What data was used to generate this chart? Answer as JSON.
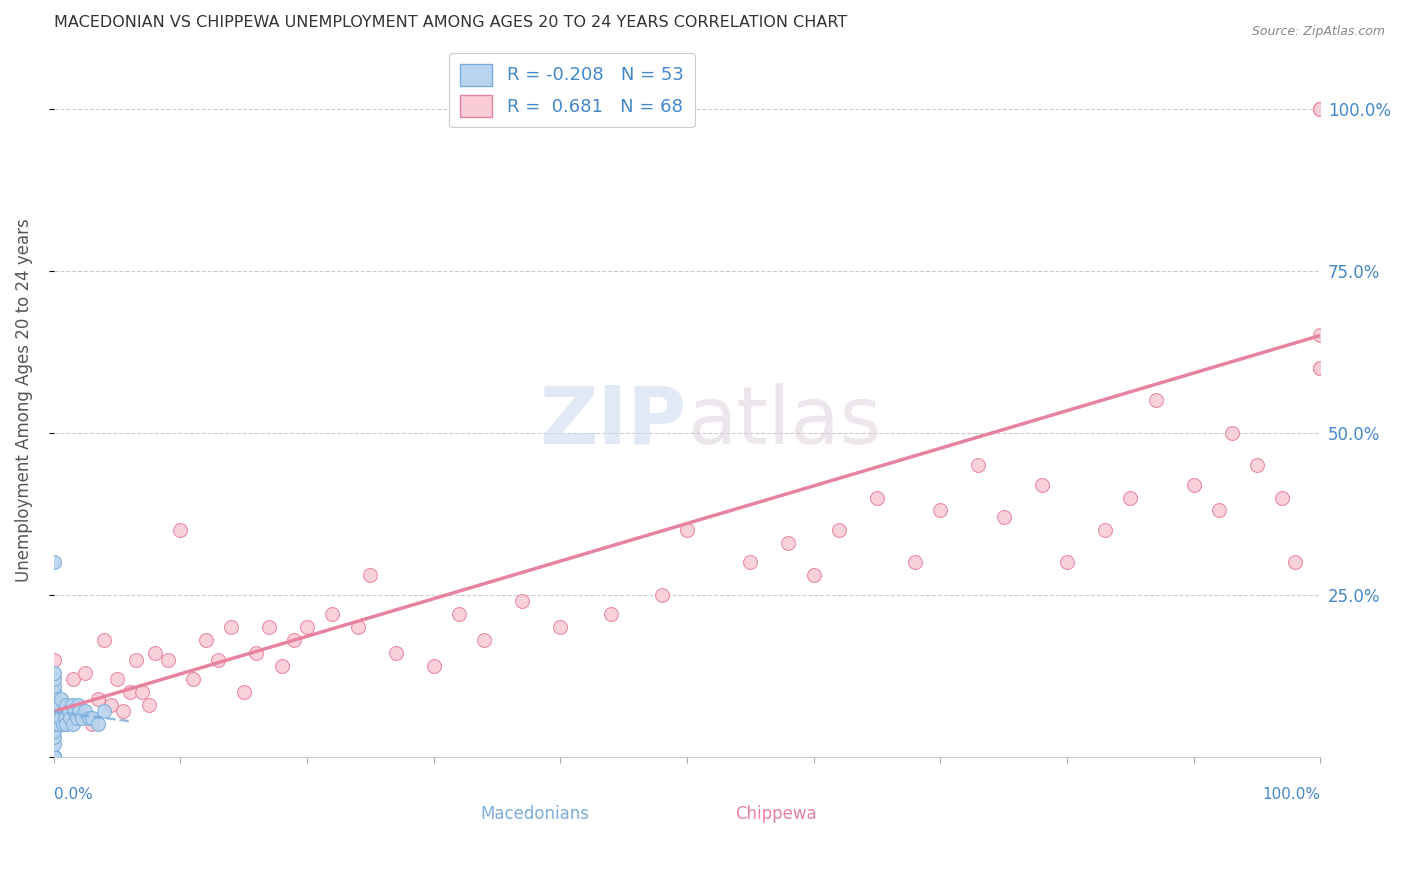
{
  "title": "MACEDONIAN VS CHIPPEWA UNEMPLOYMENT AMONG AGES 20 TO 24 YEARS CORRELATION CHART",
  "source": "Source: ZipAtlas.com",
  "ylabel": "Unemployment Among Ages 20 to 24 years",
  "ylabel_right_ticks": [
    "100.0%",
    "75.0%",
    "50.0%",
    "25.0%"
  ],
  "ylabel_right_vals": [
    1.0,
    0.75,
    0.5,
    0.25
  ],
  "macedonian_color": "#b8d4ee",
  "macedonian_edge": "#7aaddd",
  "chippewa_color": "#f9ccd8",
  "chippewa_edge": "#e8839f",
  "regression_chippewa_color": "#e8839f",
  "regression_macedonian_color": "#7aaddd",
  "background_color": "#ffffff",
  "grid_color": "#cccccc",
  "title_color": "#333333",
  "axis_label_color": "#555555",
  "right_tick_color": "#4488cc",
  "bottom_tick_color": "#4488cc",
  "legend_label_color": "#4488cc",
  "watermark": "ZIPatlas",
  "watermark_color": "#ccddf0",
  "macedonians_scatter_x": [
    0.0,
    0.0,
    0.0,
    0.0,
    0.0,
    0.0,
    0.0,
    0.0,
    0.0,
    0.0,
    0.0,
    0.0,
    0.0,
    0.0,
    0.0,
    0.0,
    0.0,
    0.0,
    0.0,
    0.0,
    0.0,
    0.0,
    0.0,
    0.0,
    0.0,
    0.0,
    0.0,
    0.0,
    0.0,
    0.0,
    0.003,
    0.003,
    0.005,
    0.006,
    0.007,
    0.008,
    0.009,
    0.01,
    0.01,
    0.012,
    0.013,
    0.014,
    0.015,
    0.016,
    0.018,
    0.019,
    0.02,
    0.022,
    0.025,
    0.028,
    0.03,
    0.035,
    0.04
  ],
  "macedonians_scatter_y": [
    0.0,
    0.0,
    0.0,
    0.0,
    0.0,
    0.0,
    0.0,
    0.0,
    0.0,
    0.0,
    0.02,
    0.03,
    0.04,
    0.05,
    0.05,
    0.06,
    0.06,
    0.07,
    0.07,
    0.07,
    0.08,
    0.08,
    0.09,
    0.09,
    0.1,
    0.1,
    0.11,
    0.12,
    0.13,
    0.3,
    0.05,
    0.08,
    0.06,
    0.09,
    0.05,
    0.07,
    0.06,
    0.05,
    0.08,
    0.07,
    0.06,
    0.08,
    0.05,
    0.07,
    0.06,
    0.08,
    0.07,
    0.06,
    0.07,
    0.06,
    0.06,
    0.05,
    0.07
  ],
  "chippewa_scatter_x": [
    0.0,
    0.0,
    0.0,
    0.01,
    0.015,
    0.02,
    0.025,
    0.03,
    0.035,
    0.04,
    0.045,
    0.05,
    0.055,
    0.06,
    0.065,
    0.07,
    0.075,
    0.08,
    0.09,
    0.1,
    0.11,
    0.12,
    0.13,
    0.14,
    0.15,
    0.16,
    0.17,
    0.18,
    0.19,
    0.2,
    0.22,
    0.24,
    0.25,
    0.27,
    0.3,
    0.32,
    0.34,
    0.37,
    0.4,
    0.44,
    0.48,
    0.5,
    0.55,
    0.58,
    0.6,
    0.62,
    0.65,
    0.68,
    0.7,
    0.73,
    0.75,
    0.78,
    0.8,
    0.83,
    0.85,
    0.87,
    0.9,
    0.92,
    0.93,
    0.95,
    0.97,
    0.98,
    1.0,
    1.0,
    1.0,
    1.0,
    1.0,
    1.0
  ],
  "chippewa_scatter_y": [
    0.1,
    0.15,
    0.08,
    0.05,
    0.12,
    0.07,
    0.13,
    0.05,
    0.09,
    0.18,
    0.08,
    0.12,
    0.07,
    0.1,
    0.15,
    0.1,
    0.08,
    0.16,
    0.15,
    0.35,
    0.12,
    0.18,
    0.15,
    0.2,
    0.1,
    0.16,
    0.2,
    0.14,
    0.18,
    0.2,
    0.22,
    0.2,
    0.28,
    0.16,
    0.14,
    0.22,
    0.18,
    0.24,
    0.2,
    0.22,
    0.25,
    0.35,
    0.3,
    0.33,
    0.28,
    0.35,
    0.4,
    0.3,
    0.38,
    0.45,
    0.37,
    0.42,
    0.3,
    0.35,
    0.4,
    0.55,
    0.42,
    0.38,
    0.5,
    0.45,
    0.4,
    0.3,
    0.6,
    0.65,
    0.6,
    1.0,
    1.0,
    1.0
  ],
  "xlim": [
    0.0,
    1.0
  ],
  "ylim": [
    0.0,
    1.1
  ],
  "marker_size": 100,
  "chippewa_regression_x0": 0.0,
  "chippewa_regression_y0": 0.07,
  "chippewa_regression_x1": 1.0,
  "chippewa_regression_y1": 0.65,
  "macedonian_regression_x0": 0.0,
  "macedonian_regression_y0": 0.07,
  "macedonian_regression_x1": 0.06,
  "macedonian_regression_y1": 0.055
}
